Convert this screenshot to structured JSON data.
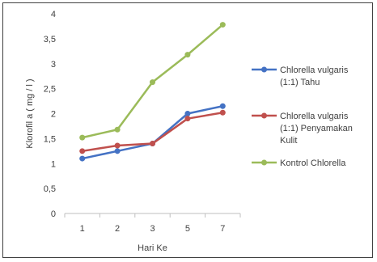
{
  "chart_data": {
    "type": "line",
    "categories": [
      "1",
      "2",
      "3",
      "5",
      "7"
    ],
    "xlabel": "Hari Ke",
    "ylabel": "Klorofil a ( mg / l )",
    "ylim": [
      0,
      4
    ],
    "ytick_labels": [
      "0",
      "0,5",
      "1",
      "1,5",
      "2",
      "2,5",
      "3",
      "3,5",
      "4"
    ],
    "grid": false,
    "legend_position": "right",
    "series": [
      {
        "name_lines": [
          "Chlorella vulgaris",
          "(1:1) Tahu"
        ],
        "color": "#4472C4",
        "values": [
          1.1,
          1.25,
          1.4,
          2.0,
          2.15
        ]
      },
      {
        "name_lines": [
          "Chlorella vulgaris",
          "(1:1) Penyamakan",
          "Kulit"
        ],
        "color": "#C0504D",
        "values": [
          1.25,
          1.36,
          1.4,
          1.9,
          2.02
        ]
      },
      {
        "name_lines": [
          "Kontrol Chlorella"
        ],
        "color": "#9BBB59",
        "values": [
          1.52,
          1.68,
          2.63,
          3.18,
          3.78
        ]
      }
    ]
  }
}
